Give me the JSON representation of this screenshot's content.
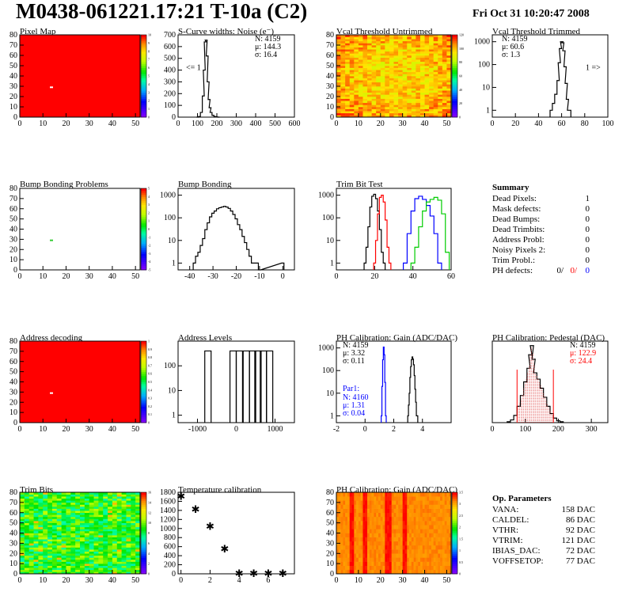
{
  "header": {
    "title": "M0438-061221.17:21 T-10a (C2)",
    "date": "Fri Oct 31 10:20:47 2008"
  },
  "colors": {
    "red": "#ff0000",
    "blue": "#0000ff",
    "green": "#00cc00",
    "black": "#000000"
  },
  "chart_data": [
    {
      "id": "pixel-map",
      "type": "heatmap",
      "title": "Pixel Map",
      "xlim": [
        0,
        52
      ],
      "ylim": [
        0,
        80
      ],
      "xticks": [
        0,
        10,
        20,
        30,
        40,
        50
      ],
      "yticks": [
        0,
        10,
        20,
        30,
        40,
        50,
        60,
        70,
        80
      ],
      "zlim": [
        0,
        10
      ],
      "zticks": [
        "0",
        "1",
        "2",
        "3",
        "4",
        "5",
        "6",
        "7",
        "8",
        "9",
        "10"
      ],
      "fill": "uniform-high",
      "marks": [
        {
          "x": 13,
          "y": 29,
          "color": "#ffffff"
        }
      ]
    },
    {
      "id": "scurve-noise",
      "type": "line",
      "title": "S-Curve widths: Noise (e⁻)",
      "xlim": [
        0,
        600
      ],
      "ylim": [
        0,
        700
      ],
      "xticks": [
        0,
        100,
        200,
        300,
        400,
        500,
        600
      ],
      "yticks": [
        0,
        100,
        200,
        300,
        400,
        500,
        600,
        700
      ],
      "stats": [
        "N: 4159",
        "μ: 144.3",
        "σ: 16.4"
      ],
      "annotation": "<= 1",
      "x": [
        100,
        110,
        120,
        130,
        135,
        140,
        145,
        150,
        155,
        160,
        165,
        170,
        180,
        190,
        200,
        210
      ],
      "y": [
        0,
        5,
        40,
        180,
        400,
        640,
        655,
        520,
        300,
        150,
        80,
        40,
        15,
        5,
        2,
        0
      ]
    },
    {
      "id": "vcal-untrimmed",
      "type": "heatmap",
      "title": "Vcal Threshold Untrimmed",
      "xlim": [
        0,
        52
      ],
      "ylim": [
        0,
        80
      ],
      "xticks": [
        0,
        10,
        20,
        30,
        40,
        50
      ],
      "yticks": [
        0,
        10,
        20,
        30,
        40,
        50,
        60,
        70,
        80
      ],
      "zlim": [
        0,
        130
      ],
      "zticks": [
        "0",
        "20",
        "40",
        "60",
        "80",
        "100",
        "120"
      ],
      "fill": "gradient-warm"
    },
    {
      "id": "vcal-trimmed",
      "type": "line",
      "title": "Vcal Threshold Trimmed",
      "log_y": true,
      "xlim": [
        0,
        100
      ],
      "ylim": [
        0.5,
        2000
      ],
      "xticks": [
        0,
        20,
        40,
        60,
        80,
        100
      ],
      "yticks": [
        1,
        10,
        100,
        1000
      ],
      "stats": [
        "N: 4159",
        "μ: 60.6",
        "σ: 1.3"
      ],
      "annotation": "1 =>",
      "x": [
        51,
        53,
        55,
        57,
        58,
        59,
        60,
        61,
        62,
        63,
        64,
        65,
        66,
        67
      ],
      "y": [
        1,
        2,
        5,
        20,
        120,
        500,
        1000,
        900,
        400,
        80,
        15,
        3,
        1,
        1
      ]
    },
    {
      "id": "bump-problems",
      "type": "heatmap",
      "title": "Bump Bonding Problems",
      "xlim": [
        0,
        52
      ],
      "ylim": [
        0,
        80
      ],
      "xticks": [
        0,
        10,
        20,
        30,
        40,
        50
      ],
      "yticks": [
        0,
        10,
        20,
        30,
        40,
        50,
        60,
        70,
        80
      ],
      "zlim": [
        -5,
        5
      ],
      "zticks": [
        "-5",
        "-4",
        "-3",
        "-2",
        "-1",
        "0",
        "1",
        "2",
        "3",
        "4",
        "5"
      ],
      "fill": "empty",
      "marks": [
        {
          "x": 13,
          "y": 29,
          "color": "#33cc33"
        }
      ]
    },
    {
      "id": "bump-bonding",
      "type": "line",
      "title": "Bump Bonding",
      "log_y": true,
      "xlim": [
        -45,
        5
      ],
      "ylim": [
        0.5,
        2000
      ],
      "xticks": [
        -40,
        -30,
        -20,
        -10,
        0
      ],
      "yticks": [
        1,
        10,
        100,
        1000
      ],
      "x": [
        -38,
        -37,
        -36,
        -35,
        -34,
        -33,
        -32,
        -31,
        -30,
        -29,
        -28,
        -27,
        -26,
        -25,
        -24,
        -23,
        -22,
        -21,
        -20,
        -19,
        -18,
        -17,
        -16,
        -15,
        -14,
        -13,
        -12,
        -11,
        -10,
        0
      ],
      "y": [
        1,
        2,
        3,
        6,
        12,
        30,
        60,
        110,
        160,
        200,
        250,
        280,
        300,
        320,
        300,
        260,
        200,
        140,
        90,
        50,
        30,
        15,
        8,
        4,
        2,
        1,
        1,
        1,
        0,
        1
      ]
    },
    {
      "id": "trim-bit-test",
      "type": "line",
      "title": "Trim Bit Test",
      "log_y": true,
      "xlim": [
        0,
        60
      ],
      "ylim": [
        0.5,
        2000
      ],
      "xticks": [
        0,
        20,
        40,
        60
      ],
      "yticks": [
        1,
        10,
        100,
        1000
      ],
      "series": [
        {
          "color": "#000000",
          "x": [
            15,
            16,
            17,
            18,
            19,
            20,
            21,
            22,
            23,
            24,
            25
          ],
          "y": [
            1,
            5,
            40,
            300,
            900,
            1100,
            700,
            200,
            30,
            3,
            1
          ]
        },
        {
          "color": "#ff0000",
          "x": [
            20,
            21,
            22,
            23,
            24,
            25,
            26,
            27,
            28
          ],
          "y": [
            1,
            10,
            150,
            800,
            1000,
            500,
            80,
            5,
            1
          ]
        },
        {
          "color": "#0000ff",
          "x": [
            36,
            38,
            40,
            42,
            44,
            46,
            48,
            50,
            52,
            54
          ],
          "y": [
            1,
            20,
            200,
            700,
            900,
            650,
            350,
            120,
            20,
            1
          ]
        },
        {
          "color": "#00cc00",
          "x": [
            40,
            42,
            44,
            46,
            48,
            50,
            52,
            54,
            56,
            58
          ],
          "y": [
            1,
            5,
            40,
            200,
            500,
            650,
            800,
            600,
            150,
            3
          ]
        }
      ]
    },
    {
      "id": "address-decoding",
      "type": "heatmap",
      "title": "Address decoding",
      "xlim": [
        0,
        52
      ],
      "ylim": [
        0,
        80
      ],
      "xticks": [
        0,
        10,
        20,
        30,
        40,
        50
      ],
      "yticks": [
        0,
        10,
        20,
        30,
        40,
        50,
        60,
        70,
        80
      ],
      "zlim": [
        0,
        1
      ],
      "zticks": [
        "0",
        "0.1",
        "0.2",
        "0.3",
        "0.4",
        "0.5",
        "0.6",
        "0.7",
        "0.8",
        "0.9",
        "1"
      ],
      "fill": "uniform-high",
      "marks": [
        {
          "x": 13,
          "y": 29,
          "color": "#ffffff"
        }
      ]
    },
    {
      "id": "address-levels",
      "type": "line",
      "title": "Address Levels",
      "log_y": true,
      "xlim": [
        -1500,
        1500
      ],
      "ylim": [
        0.5,
        1000
      ],
      "xticks": [
        -1000,
        0,
        1000
      ],
      "yticks": [
        1,
        10,
        100
      ],
      "peaks": [
        -730,
        -80,
        80,
        260,
        420,
        560,
        700,
        860
      ],
      "peak_height": 400
    },
    {
      "id": "ph-gain",
      "type": "line",
      "title": "PH Calibration: Gain (ADC/DAC)",
      "log_y": true,
      "xlim": [
        -2,
        6
      ],
      "ylim": [
        0.5,
        2000
      ],
      "xticks": [
        -2,
        0,
        2,
        4
      ],
      "yticks": [
        1,
        10,
        100,
        1000
      ],
      "stats": [
        "N: 4159",
        "μ: 3.32",
        "σ: 0.11"
      ],
      "par_label": "Par1:",
      "par_stats": [
        "N: 4160",
        "μ: 1.31",
        "σ: 0.04"
      ],
      "series": [
        {
          "color": "#000000",
          "x": [
            3.0,
            3.05,
            3.1,
            3.15,
            3.2,
            3.25,
            3.3,
            3.35,
            3.4,
            3.45,
            3.5,
            3.55,
            3.6,
            3.65
          ],
          "y": [
            1,
            3,
            10,
            50,
            150,
            300,
            400,
            320,
            180,
            60,
            15,
            4,
            1,
            1
          ]
        },
        {
          "color": "#0000ff",
          "x": [
            1.15,
            1.2,
            1.25,
            1.3,
            1.35,
            1.4,
            1.45
          ],
          "y": [
            1,
            20,
            300,
            1100,
            500,
            30,
            1
          ]
        }
      ]
    },
    {
      "id": "ph-pedestal",
      "type": "line",
      "title": "PH Calibration: Pedestal (DAC)",
      "xlim": [
        0,
        350
      ],
      "ylim": [
        0,
        90
      ],
      "xticks": [
        0,
        100,
        200,
        300
      ],
      "stats": [
        "N: 4159",
        "μ: 122.9",
        "σ: 24.4"
      ],
      "range_lines": [
        75,
        185
      ],
      "x": [
        50,
        60,
        70,
        80,
        90,
        100,
        110,
        115,
        120,
        125,
        130,
        140,
        150,
        160,
        170,
        180,
        190,
        200,
        210
      ],
      "y": [
        1,
        3,
        8,
        18,
        30,
        45,
        60,
        75,
        85,
        70,
        55,
        48,
        38,
        28,
        18,
        10,
        5,
        2,
        1
      ]
    },
    {
      "id": "trim-bits",
      "type": "heatmap",
      "title": "Trim Bits",
      "xlim": [
        0,
        52
      ],
      "ylim": [
        0,
        80
      ],
      "xticks": [
        0,
        10,
        20,
        30,
        40,
        50
      ],
      "yticks": [
        0,
        10,
        20,
        30,
        40,
        50,
        60,
        70,
        80
      ],
      "zlim": [
        0,
        16
      ],
      "zticks": [
        "0",
        "2",
        "4",
        "6",
        "8",
        "10",
        "12",
        "14",
        "16"
      ],
      "fill": "noisy-mid"
    },
    {
      "id": "temp-calibration",
      "type": "scatter",
      "title": "Temperature calibration",
      "xlim": [
        -0.2,
        7.8
      ],
      "ylim": [
        0,
        1800
      ],
      "xticks": [
        0,
        2,
        4,
        6
      ],
      "yticks": [
        0,
        200,
        400,
        600,
        800,
        1000,
        1200,
        1400,
        1600,
        1800
      ],
      "x": [
        0,
        1,
        2,
        3,
        4,
        5,
        6,
        7
      ],
      "y": [
        1720,
        1430,
        1060,
        560,
        15,
        15,
        15,
        15
      ]
    },
    {
      "id": "ph-gain-map",
      "type": "heatmap",
      "title": "PH Calibration: Gain (ADC/DAC)",
      "xlim": [
        0,
        52
      ],
      "ylim": [
        0,
        80
      ],
      "xticks": [
        0,
        10,
        20,
        30,
        40,
        50
      ],
      "yticks": [
        0,
        10,
        20,
        30,
        40,
        50,
        60,
        70,
        80
      ],
      "zlim": [
        0,
        3.5
      ],
      "zticks": [
        "0",
        "0.5",
        "1",
        "1.5",
        "2",
        "2.5",
        "3",
        "3.5"
      ],
      "fill": "columns"
    }
  ],
  "summary": {
    "heading": "Summary",
    "rows": [
      {
        "label": "Dead Pixels:",
        "value": "1"
      },
      {
        "label": "Mask defects:",
        "value": "0"
      },
      {
        "label": "Dead Bumps:",
        "value": "0"
      },
      {
        "label": "Dead Trimbits:",
        "value": "0"
      },
      {
        "label": "Address Probl:",
        "value": "0"
      },
      {
        "label": "Noisy Pixels 2:",
        "value": "0"
      },
      {
        "label": "Trim Probl.:",
        "value": "0"
      }
    ],
    "ph_defects": {
      "label": "PH defects:",
      "values": [
        "0/",
        "0/",
        "0"
      ]
    }
  },
  "op_params": {
    "heading": "Op. Parameters",
    "rows": [
      {
        "label": "VANA:",
        "value": "158 DAC"
      },
      {
        "label": "CALDEL:",
        "value": "86 DAC"
      },
      {
        "label": "VTHR:",
        "value": "92 DAC"
      },
      {
        "label": "VTRIM:",
        "value": "121 DAC"
      },
      {
        "label": "IBIAS_DAC:",
        "value": "72 DAC"
      },
      {
        "label": "VOFFSETOP:",
        "value": "77 DAC"
      }
    ]
  }
}
